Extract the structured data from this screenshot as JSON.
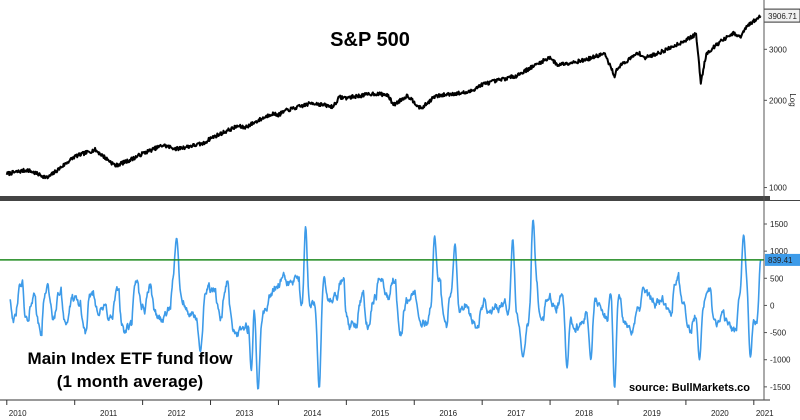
{
  "chart_data": [
    {
      "type": "line",
      "title": "S&P 500",
      "scale_label": "Log",
      "yscale": "log",
      "ylim": [
        950,
        4300
      ],
      "yticks": [
        1000,
        2000,
        3000
      ],
      "ytick_labels": [
        "1000",
        "2000",
        "3000"
      ],
      "last_value": 3906.71,
      "last_value_label": "3906.71",
      "line_color": "#000000",
      "x_years": [
        2010.0,
        2010.3,
        2010.6,
        2011.0,
        2011.3,
        2011.6,
        2011.8,
        2012.0,
        2012.3,
        2012.5,
        2012.9,
        2013.0,
        2013.4,
        2013.5,
        2013.9,
        2014.0,
        2014.1,
        2014.5,
        2014.8,
        2014.9,
        2015.0,
        2015.4,
        2015.6,
        2015.7,
        2015.9,
        2016.1,
        2016.3,
        2016.5,
        2016.8,
        2017.0,
        2017.5,
        2018.0,
        2018.1,
        2018.5,
        2018.8,
        2018.95,
        2019.0,
        2019.3,
        2019.4,
        2019.7,
        2020.0,
        2020.15,
        2020.22,
        2020.3,
        2020.5,
        2020.7,
        2020.8,
        2020.9,
        2021.1
      ],
      "values": [
        1115,
        1150,
        1080,
        1280,
        1350,
        1190,
        1240,
        1310,
        1400,
        1360,
        1420,
        1480,
        1630,
        1610,
        1800,
        1780,
        1840,
        1960,
        1900,
        2050,
        2040,
        2110,
        2090,
        1930,
        2080,
        1870,
        2060,
        2100,
        2130,
        2270,
        2430,
        2820,
        2650,
        2750,
        2900,
        2430,
        2600,
        2920,
        2800,
        2980,
        3230,
        3380,
        2300,
        2900,
        3180,
        3400,
        3300,
        3600,
        3906.71
      ]
    },
    {
      "type": "line",
      "title": "Main Index ETF fund flow",
      "subtitle": "(1 month average)",
      "ylim": [
        -1650,
        1850
      ],
      "yticks": [
        -1500,
        -1000,
        -500,
        0,
        500,
        1000,
        1500
      ],
      "ytick_labels": [
        "-1500",
        "-1000",
        "-500",
        "0",
        "500",
        "1000",
        "1500"
      ],
      "threshold": 839.41,
      "threshold_label": "839.41",
      "line_color": "#3d9be9",
      "threshold_color": "#1f8a1f",
      "spikes": [
        {
          "x": 2012.5,
          "y": 1240
        },
        {
          "x": 2012.85,
          "y": -850
        },
        {
          "x": 2013.6,
          "y": -1200
        },
        {
          "x": 2013.7,
          "y": -1550
        },
        {
          "x": 2014.4,
          "y": 1450
        },
        {
          "x": 2014.6,
          "y": -1520
        },
        {
          "x": 2016.3,
          "y": 1280
        },
        {
          "x": 2016.6,
          "y": 1130
        },
        {
          "x": 2017.45,
          "y": 1220
        },
        {
          "x": 2017.6,
          "y": -950
        },
        {
          "x": 2017.75,
          "y": 1580
        },
        {
          "x": 2018.25,
          "y": -1150
        },
        {
          "x": 2018.6,
          "y": -1000
        },
        {
          "x": 2018.95,
          "y": -1520
        },
        {
          "x": 2020.2,
          "y": -1000
        },
        {
          "x": 2020.85,
          "y": 1300
        },
        {
          "x": 2020.95,
          "y": -950
        },
        {
          "x": 2021.1,
          "y": 839.41
        }
      ]
    }
  ],
  "x_axis": {
    "tick_labels": [
      "2010",
      "2011",
      "2012",
      "2013",
      "2014",
      "2015",
      "2016",
      "2017",
      "2018",
      "2019",
      "2020",
      "2021"
    ],
    "range": [
      2009.9,
      2021.15
    ]
  },
  "source": "source: BullMarkets.co",
  "colors": {
    "label_box_bg": "#f2f2f2",
    "label_box_border": "#333333",
    "flow_label_bg": "#3d9be9",
    "divider": "#444444"
  }
}
